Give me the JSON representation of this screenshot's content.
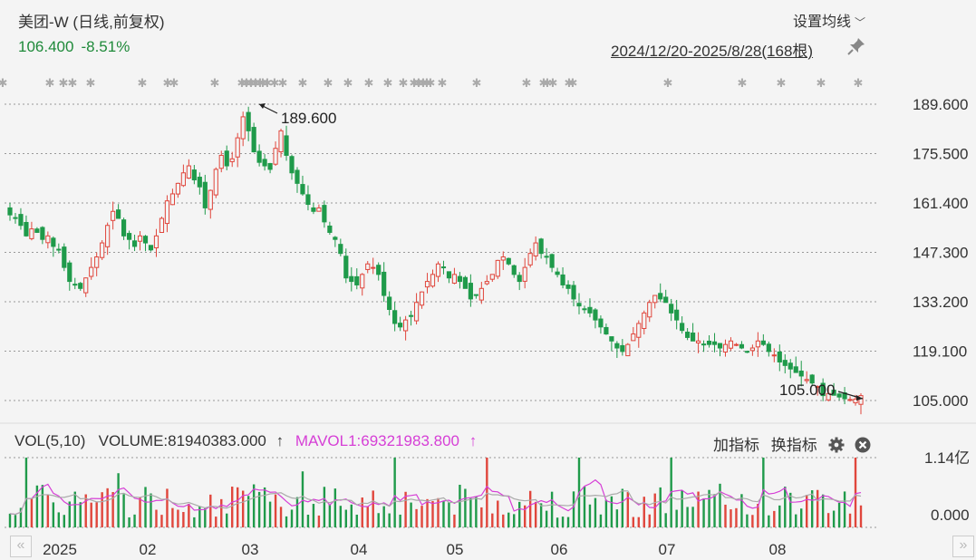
{
  "header": {
    "title": "美团-W (日线,前复权)",
    "price": "106.400",
    "change_pct": "-8.51%",
    "ma_setting_label": "设置均线",
    "range_label": "2024/12/20-2025/8/28(168根)"
  },
  "volume_panel": {
    "label": "VOL(5,10)",
    "volume_text": "VOLUME:81940383.000",
    "volume_arrow": "↑",
    "mavol_text": "MAVOL1:69321983.800",
    "mavol_arrow": "↑",
    "add_indicator": "加指标",
    "switch_indicator": "换指标"
  },
  "colors": {
    "up": "#e0463c",
    "down": "#1f9a4a",
    "mavol1": "#d63fd6",
    "mavol2": "#aaaaaa",
    "grid": "#999999"
  },
  "chart_data": {
    "type": "candlestick",
    "price_axis": {
      "min": 105.0,
      "max": 189.6,
      "ticks": [
        "189.600",
        "175.500",
        "161.400",
        "147.300",
        "133.200",
        "119.100",
        "105.000"
      ]
    },
    "volume_axis": {
      "ticks": [
        "1.14亿",
        "0.000"
      ],
      "max": 114000000
    },
    "x_labels": [
      "2025",
      "02",
      "03",
      "04",
      "05",
      "06",
      "07",
      "08"
    ],
    "annotations": {
      "high_label": "189.600",
      "low_label": "105.000"
    },
    "closes": [
      158,
      157,
      155,
      152,
      154,
      153,
      151,
      152,
      149,
      148,
      143,
      139,
      138,
      137,
      140,
      143,
      146,
      150,
      155,
      159,
      157,
      152,
      151,
      149,
      152,
      150,
      148,
      152,
      157,
      162,
      164,
      167,
      170,
      172,
      168,
      166,
      160,
      165,
      171,
      175,
      172,
      174,
      180,
      186,
      182,
      176,
      173,
      172,
      171,
      177,
      182,
      175,
      170,
      167,
      164,
      161,
      159,
      160,
      156,
      153,
      151,
      147,
      140,
      139,
      138,
      141,
      144,
      143,
      141,
      135,
      131,
      127,
      126,
      128,
      129,
      133,
      136,
      139,
      141,
      144,
      143,
      140,
      141,
      139,
      137,
      134,
      135,
      137,
      139,
      141,
      145,
      146,
      144,
      141,
      139,
      143,
      147,
      150,
      147,
      146,
      143,
      141,
      138,
      137,
      134,
      132,
      131,
      130,
      128,
      126,
      124,
      122,
      120,
      119,
      121,
      124,
      127,
      130,
      133,
      135,
      134,
      133,
      130,
      128,
      125,
      123,
      122,
      122,
      121,
      121,
      121,
      120,
      121,
      122,
      121,
      120,
      119,
      120,
      122,
      121,
      119,
      118,
      116,
      115,
      114,
      113,
      112,
      111,
      110,
      109,
      106.4,
      107,
      106.5,
      106,
      105.5,
      105.3,
      105.4,
      106.4
    ],
    "volume_level_avg": 0.35
  }
}
